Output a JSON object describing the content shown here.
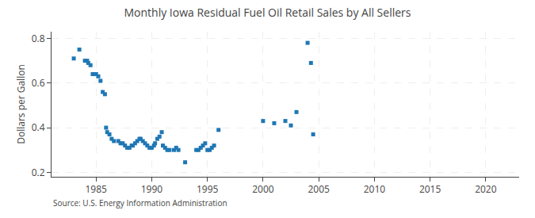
{
  "chart_data": {
    "type": "scatter",
    "title": "Monthly Iowa Residual Fuel Oil Retail Sales by All Sellers",
    "ylabel": "Dollars per Gallon",
    "annotations": [
      "Source: U.S. Energy Information Administration"
    ],
    "marker": "square",
    "grid": true,
    "xlim": [
      1981,
      2023
    ],
    "ylim": [
      0.18,
      0.83
    ],
    "xticks": [
      1985,
      1990,
      1995,
      2000,
      2005,
      2010,
      2015,
      2020
    ],
    "yticks": [
      0.2,
      0.4,
      0.6,
      0.8
    ],
    "x": [
      1983.0,
      1983.5,
      1984.0,
      1984.2,
      1984.3,
      1984.5,
      1984.7,
      1985.0,
      1985.2,
      1985.4,
      1985.6,
      1985.8,
      1985.9,
      1986.0,
      1986.2,
      1986.4,
      1986.6,
      1987.0,
      1987.2,
      1987.4,
      1987.6,
      1987.8,
      1988.0,
      1988.2,
      1988.3,
      1988.5,
      1988.7,
      1988.9,
      1989.0,
      1989.2,
      1989.4,
      1989.6,
      1989.8,
      1990.0,
      1990.2,
      1990.3,
      1990.5,
      1990.7,
      1990.9,
      1991.0,
      1991.2,
      1991.4,
      1991.6,
      1992.0,
      1992.2,
      1992.4,
      1993.0,
      1994.0,
      1994.2,
      1994.4,
      1994.6,
      1994.8,
      1995.0,
      1995.2,
      1995.4,
      1995.6,
      1996.0,
      2000.0,
      2001.0,
      2002.0,
      2002.5,
      2003.0,
      2004.0,
      2004.3,
      2004.5
    ],
    "values": [
      0.71,
      0.75,
      0.7,
      0.7,
      0.69,
      0.68,
      0.64,
      0.64,
      0.63,
      0.61,
      0.56,
      0.55,
      0.4,
      0.38,
      0.37,
      0.35,
      0.34,
      0.34,
      0.33,
      0.33,
      0.32,
      0.31,
      0.31,
      0.32,
      0.32,
      0.33,
      0.34,
      0.35,
      0.35,
      0.34,
      0.33,
      0.32,
      0.31,
      0.31,
      0.32,
      0.33,
      0.35,
      0.36,
      0.38,
      0.32,
      0.31,
      0.3,
      0.3,
      0.3,
      0.31,
      0.3,
      0.245,
      0.3,
      0.3,
      0.31,
      0.32,
      0.33,
      0.3,
      0.3,
      0.31,
      0.32,
      0.39,
      0.43,
      0.42,
      0.43,
      0.41,
      0.47,
      0.78,
      0.69,
      0.37
    ]
  }
}
